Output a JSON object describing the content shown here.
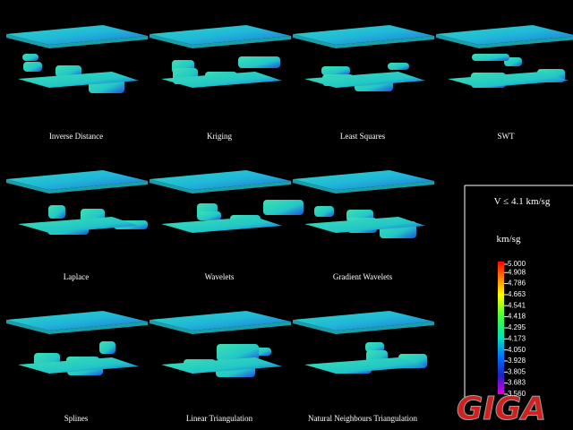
{
  "panels": [
    {
      "label": "Inverse Distance"
    },
    {
      "label": "Kriging"
    },
    {
      "label": "Least Squares"
    },
    {
      "label": "SWT"
    },
    {
      "label": "Laplace"
    },
    {
      "label": "Wavelets"
    },
    {
      "label": "Gradient Wavelets"
    },
    {
      "label": "Splines"
    },
    {
      "label": "Linear Triangulation"
    },
    {
      "label": "Natural Neighbours Triangulation"
    }
  ],
  "legend": {
    "title": "V ≤ 4.1 km/sg",
    "unit": "km/sg",
    "ticks": [
      {
        "value": 5.0,
        "label": "5.000"
      },
      {
        "value": 4.908,
        "label": "4.908"
      },
      {
        "value": 4.786,
        "label": "4.786"
      },
      {
        "value": 4.663,
        "label": "4.663"
      },
      {
        "value": 4.541,
        "label": "4.541"
      },
      {
        "value": 4.418,
        "label": "4.418"
      },
      {
        "value": 4.295,
        "label": "4.295"
      },
      {
        "value": 4.173,
        "label": "4.173"
      },
      {
        "value": 4.05,
        "label": "4.050"
      },
      {
        "value": 3.928,
        "label": "3.928"
      },
      {
        "value": 3.805,
        "label": "3.805"
      },
      {
        "value": 3.683,
        "label": "3.683"
      },
      {
        "value": 3.56,
        "label": "3.560"
      }
    ]
  },
  "logo": "GIGA"
}
